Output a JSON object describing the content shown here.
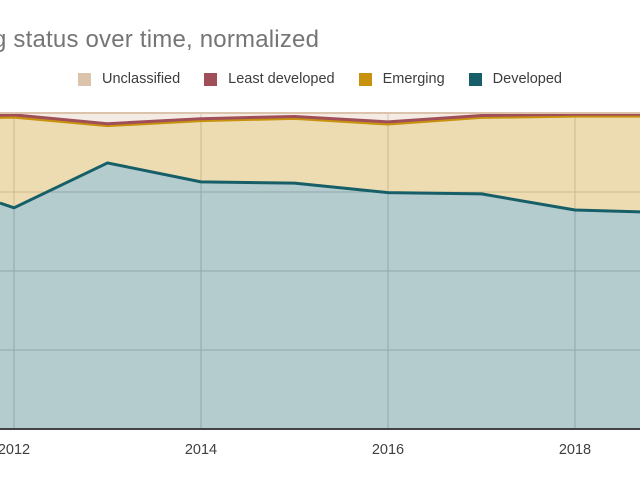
{
  "title": "g status over time, normalized",
  "legend": {
    "items": [
      {
        "label": "Unclassified",
        "color": "#dcc3ac"
      },
      {
        "label": "Least developed",
        "color": "#a04e58"
      },
      {
        "label": "Emerging",
        "color": "#c8920e"
      },
      {
        "label": "Developed",
        "color": "#175f68"
      }
    ]
  },
  "x_axis": {
    "labels": [
      "2012",
      "2014",
      "2016",
      "2018"
    ]
  },
  "chart_data": {
    "type": "area",
    "subtype": "stacked-normalized",
    "title": "g status over time, normalized",
    "x": [
      2011.85,
      2012,
      2013,
      2014,
      2015,
      2016,
      2017,
      2018,
      2018.7
    ],
    "x_ticks": [
      2012,
      2014,
      2016,
      2018
    ],
    "y_axis": {
      "min": 0,
      "max": 100,
      "unit": "%",
      "gridlines_pct": [
        25,
        50,
        75,
        100
      ]
    },
    "series": [
      {
        "name": "Developed",
        "color": "#175f68",
        "values": [
          71.5,
          70.0,
          84.2,
          78.2,
          77.8,
          74.8,
          74.4,
          69.3,
          68.7
        ]
      },
      {
        "name": "Emerging",
        "color": "#c8920e",
        "values": [
          27.1,
          28.7,
          11.8,
          19.4,
          20.5,
          21.7,
          24.2,
          29.7,
          30.3
        ]
      },
      {
        "name": "Least developed",
        "color": "#a04e58",
        "values": [
          0.7,
          0.7,
          0.6,
          0.6,
          0.6,
          0.7,
          0.6,
          0.6,
          0.6
        ]
      },
      {
        "name": "Unclassified",
        "color": "#dcc3ac",
        "values": [
          0.7,
          0.6,
          3.4,
          1.8,
          1.1,
          2.8,
          0.8,
          0.4,
          0.4
        ]
      }
    ],
    "fill_opacity": 0.32,
    "grid_color": "#cccccc",
    "axis_line_color": "#424242",
    "legend_position": "top",
    "background": "#ffffff"
  }
}
